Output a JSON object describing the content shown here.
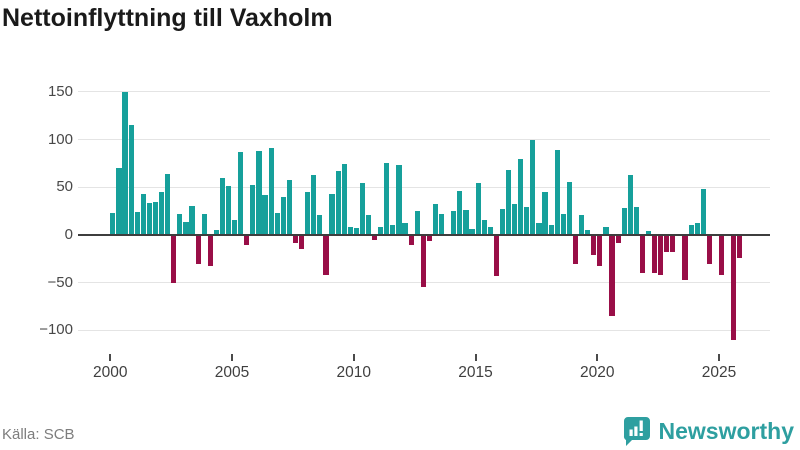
{
  "chart_data": {
    "type": "bar",
    "title": "Nettoinflyttning till Vaxholm",
    "x_unit": "quarter",
    "start_year": 2000,
    "x_tick_labels": [
      "2000",
      "2005",
      "2010",
      "2015",
      "2020",
      "2025"
    ],
    "y_ticks": [
      150,
      100,
      50,
      0,
      -50,
      -100
    ],
    "ylim": [
      -120,
      160
    ],
    "grid": "horizontal",
    "legend": "none",
    "series": [
      {
        "name": "Nettoinflyttning",
        "values": [
          23,
          70,
          150,
          115,
          24,
          43,
          34,
          35,
          45,
          64,
          -50,
          22,
          14,
          30,
          -30,
          22,
          -32,
          5,
          60,
          51,
          16,
          87,
          -10,
          52,
          88,
          42,
          91,
          23,
          40,
          58,
          -8,
          -15,
          45,
          63,
          21,
          -42,
          43,
          67,
          74,
          8,
          7,
          54,
          21,
          -5,
          8,
          75,
          10,
          73,
          13,
          -10,
          25,
          -54,
          -6,
          33,
          22,
          0,
          25,
          46,
          26,
          6,
          54,
          16,
          8,
          -43,
          27,
          68,
          32,
          80,
          29,
          100,
          13,
          45,
          10,
          89,
          22,
          56,
          -30,
          21,
          5,
          -21,
          -33,
          8,
          -85,
          -8,
          28,
          63,
          29,
          -40,
          4,
          -40,
          -42,
          -18,
          -18,
          0,
          -47,
          10,
          13,
          48,
          -30,
          0,
          -42,
          0,
          -110,
          -24
        ]
      }
    ],
    "colors": {
      "positive": "#16a09b",
      "negative": "#990e47",
      "axis_line": "#3e3e3e",
      "gridline": "#e4e4e4"
    }
  },
  "footer": {
    "source": "Källa: SCB",
    "brand": "Newsworthy",
    "brand_color": "#2e9fa0"
  }
}
